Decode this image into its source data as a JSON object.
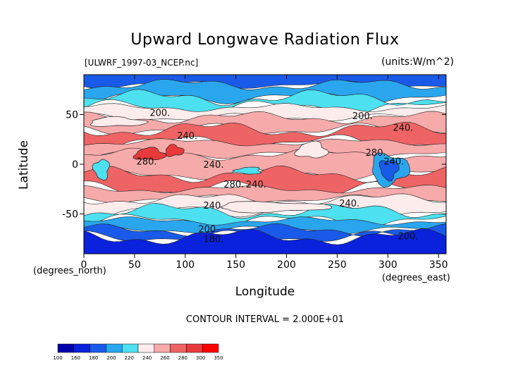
{
  "chart_data": {
    "type": "heatmap",
    "title": "Upward Longwave Radiation Flux",
    "subtitle": "[ULWRF_1997-03_NCEP.nc]",
    "units": "(units:W/m^2)",
    "xlabel": "Longitude",
    "ylabel": "Latitude",
    "x_unit_note": "(degrees_east)",
    "y_unit_note": "(degrees_north)",
    "xlim": [
      0,
      357.5
    ],
    "ylim": [
      -90,
      90
    ],
    "x_ticks": [
      0,
      50,
      100,
      150,
      200,
      250,
      300,
      350
    ],
    "y_ticks": [
      50,
      0,
      -50
    ],
    "contour_interval_text": "CONTOUR INTERVAL = 2.000E+01",
    "colorbar": {
      "levels": [
        100,
        160,
        180,
        200,
        220,
        240,
        260,
        280,
        300,
        350
      ],
      "colors": [
        "#0000aa",
        "#0a22dc",
        "#1a5ae8",
        "#2aa6ee",
        "#4de0f0",
        "#fdecec",
        "#f6aaaa",
        "#ee6464",
        "#e83a3a",
        "#ff0000"
      ]
    },
    "contour_labels": [
      {
        "text": "200.",
        "lon": 75,
        "lat": 51
      },
      {
        "text": "200.",
        "lon": 275,
        "lat": 48
      },
      {
        "text": "240.",
        "lon": 102,
        "lat": 28
      },
      {
        "text": "240.",
        "lon": 315,
        "lat": 36
      },
      {
        "text": "280.",
        "lon": 62,
        "lat": 2
      },
      {
        "text": "240.",
        "lon": 128,
        "lat": -1
      },
      {
        "text": "280.",
        "lon": 288,
        "lat": 11
      },
      {
        "text": "240.",
        "lon": 306,
        "lat": 2
      },
      {
        "text": "280.",
        "lon": 148,
        "lat": -21
      },
      {
        "text": "240.",
        "lon": 170,
        "lat": -21
      },
      {
        "text": "240.",
        "lon": 128,
        "lat": -42
      },
      {
        "text": "240.",
        "lon": 262,
        "lat": -40
      },
      {
        "text": "200.",
        "lon": 123,
        "lat": -66
      },
      {
        "text": "200.",
        "lon": 320,
        "lat": -73
      },
      {
        "text": "180.",
        "lon": 128,
        "lat": -76
      }
    ],
    "zonal_bands": [
      {
        "lat_max": 90,
        "lat_min": 80,
        "level": 180
      },
      {
        "lat_max": 80,
        "lat_min": 67,
        "level": 200
      },
      {
        "lat_max": 67,
        "lat_min": 57,
        "level": 220
      },
      {
        "lat_max": 57,
        "lat_min": 47,
        "level": 240
      },
      {
        "lat_max": 47,
        "lat_min": 35,
        "level": 260
      },
      {
        "lat_max": 35,
        "lat_min": 22,
        "level": 280
      },
      {
        "lat_max": 22,
        "lat_min": 10,
        "level": 260
      },
      {
        "lat_max": 10,
        "lat_min": -10,
        "level": 260
      },
      {
        "lat_max": -10,
        "lat_min": -25,
        "level": 280
      },
      {
        "lat_max": -25,
        "lat_min": -35,
        "level": 260
      },
      {
        "lat_max": -35,
        "lat_min": -47,
        "level": 240
      },
      {
        "lat_max": -47,
        "lat_min": -57,
        "level": 220
      },
      {
        "lat_max": -57,
        "lat_min": -66,
        "level": 200
      },
      {
        "lat_max": -66,
        "lat_min": -73,
        "level": 180
      },
      {
        "lat_max": -73,
        "lat_min": -90,
        "level": 160
      }
    ],
    "features": [
      {
        "lon": [
          50,
          80
        ],
        "lat": [
          16,
          4
        ],
        "level": 300
      },
      {
        "lon": [
          80,
          98
        ],
        "lat": [
          19,
          8
        ],
        "level": 300
      },
      {
        "lon": [
          283,
          320
        ],
        "lat": [
          10,
          -20
        ],
        "level": 200
      },
      {
        "lon": [
          292,
          310
        ],
        "lat": [
          5,
          -15
        ],
        "level": 180
      },
      {
        "lon": [
          10,
          25
        ],
        "lat": [
          5,
          -15
        ],
        "level": 220
      },
      {
        "lon": [
          150,
          175
        ],
        "lat": [
          -3,
          -10
        ],
        "level": 220
      },
      {
        "lon": [
          210,
          240
        ],
        "lat": [
          22,
          6
        ],
        "level": 240
      },
      {
        "lon": [
          5,
          60
        ],
        "lat": [
          47,
          38
        ],
        "level": 240
      },
      {
        "lon": [
          130,
          240
        ],
        "lat": [
          -38,
          -48
        ],
        "level": 240
      }
    ]
  }
}
